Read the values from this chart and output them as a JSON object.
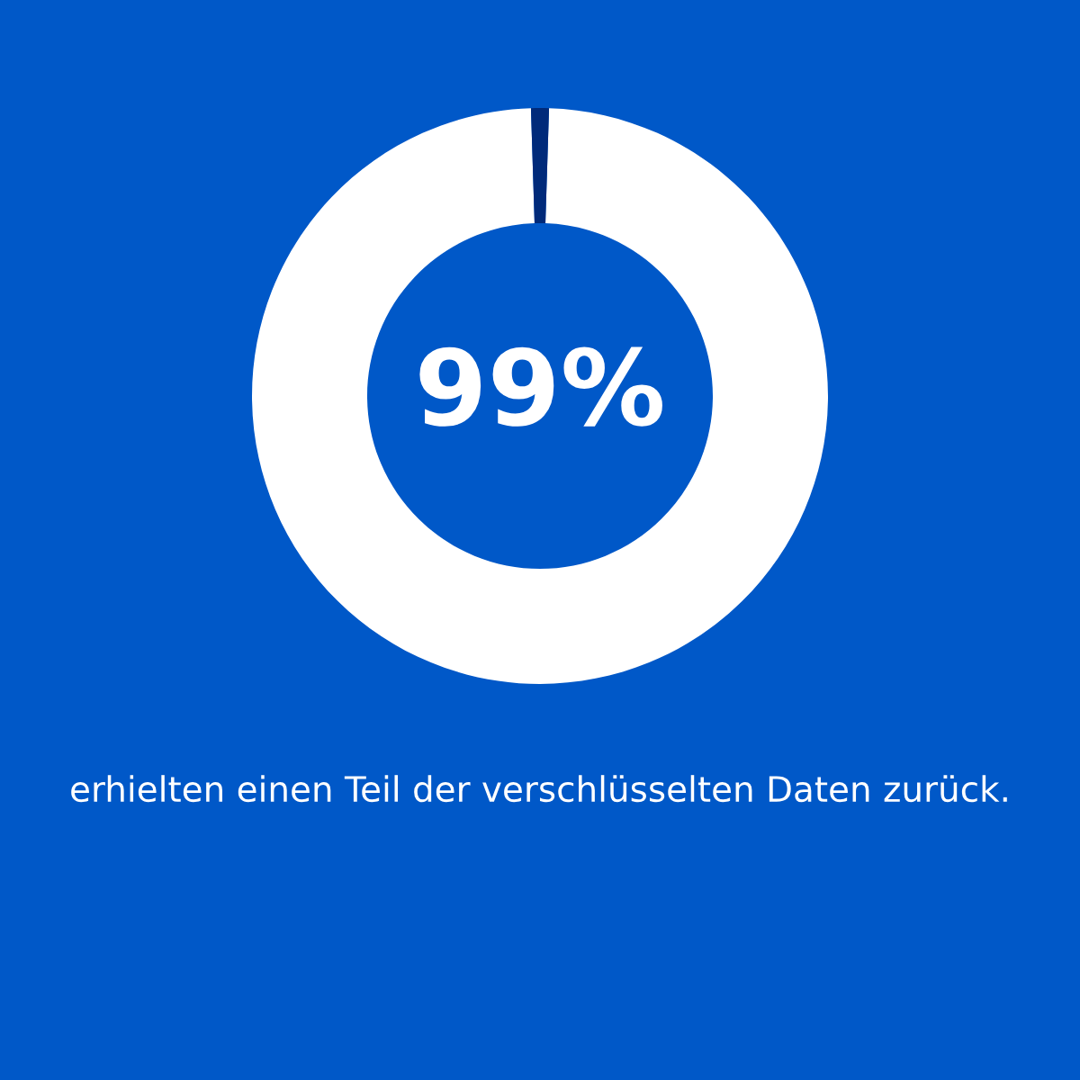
{
  "chart_data": {
    "type": "donut",
    "categories": [
      null,
      null
    ],
    "values": [
      99,
      1
    ],
    "colors": [
      "#ffffff",
      "#002a7a"
    ],
    "value_labels": [
      "99%",
      null
    ],
    "annotations": [
      "erhielten einen Teil der verschlüsselten Daten zurück."
    ]
  }
}
